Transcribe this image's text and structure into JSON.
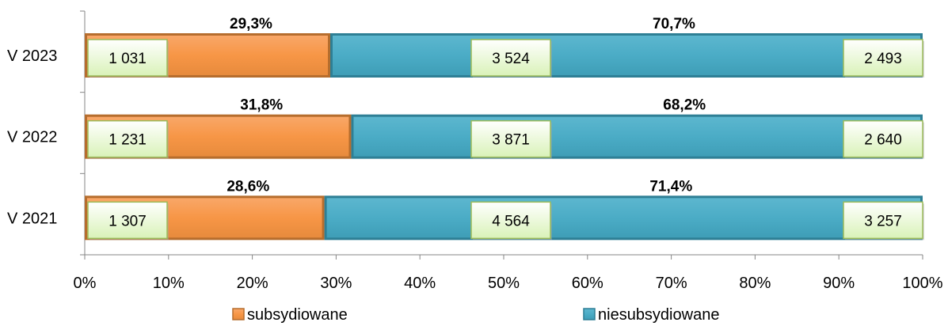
{
  "chart_data": {
    "type": "bar",
    "orientation": "horizontal",
    "stacked": "percent",
    "categories": [
      "V 2023",
      "V 2022",
      "V 2021"
    ],
    "series": [
      {
        "name": "subsydiowane",
        "color": "#F79646",
        "percent_labels": [
          "29,3%",
          "31,8%",
          "28,6%"
        ],
        "values": [
          29.3,
          31.8,
          28.6
        ]
      },
      {
        "name": "niesubsydiowane",
        "color": "#4BACC6",
        "percent_labels": [
          "70,7%",
          "68,2%",
          "71,4%"
        ],
        "values": [
          70.7,
          68.2,
          71.4
        ]
      }
    ],
    "box_labels": [
      [
        "1 031",
        "3 524",
        "2 493"
      ],
      [
        "1 231",
        "3 871",
        "2 640"
      ],
      [
        "1 307",
        "4 564",
        "3 257"
      ]
    ],
    "x_ticks": [
      "0%",
      "10%",
      "20%",
      "30%",
      "40%",
      "50%",
      "60%",
      "70%",
      "80%",
      "90%",
      "100%"
    ],
    "xlim": [
      0,
      100
    ],
    "legend_position": "bottom",
    "grid": false
  }
}
